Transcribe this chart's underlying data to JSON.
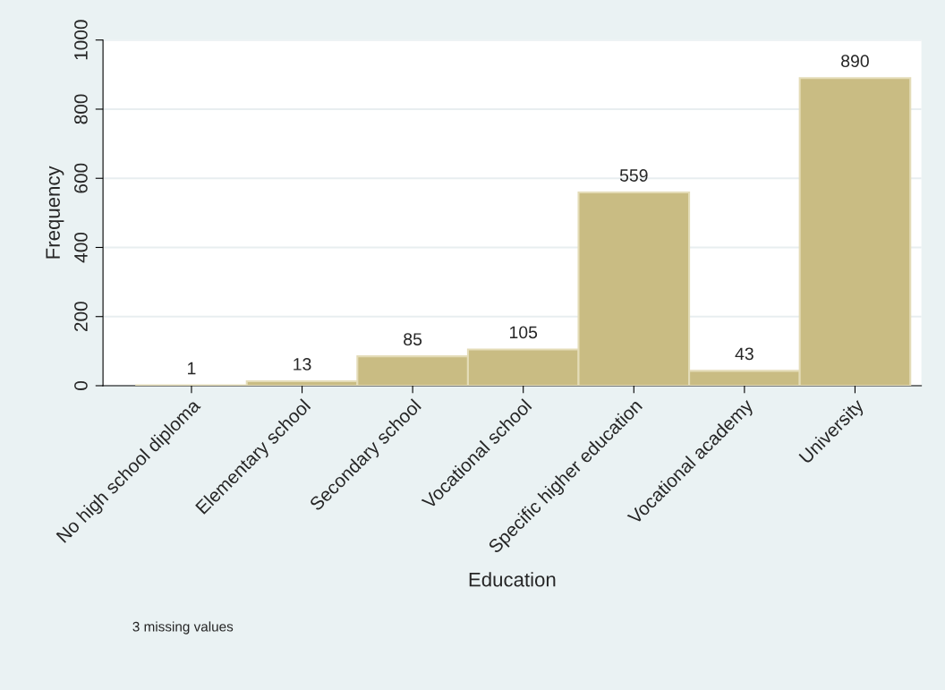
{
  "chart_data": {
    "type": "bar",
    "categories": [
      "No high school diploma",
      "Elementary school",
      "Secondary school",
      "Vocational school",
      "Specific higher education",
      "Vocational academy",
      "University"
    ],
    "values": [
      1,
      13,
      85,
      105,
      559,
      43,
      890
    ],
    "color": "#c9bc83",
    "xlabel": "Education",
    "ylabel": "Frequency",
    "ylim": [
      0,
      1000
    ],
    "yticks": [
      0,
      200,
      400,
      600,
      800,
      1000
    ],
    "grid": "y",
    "data_labels": true,
    "annotations": [
      "3 missing values"
    ]
  }
}
